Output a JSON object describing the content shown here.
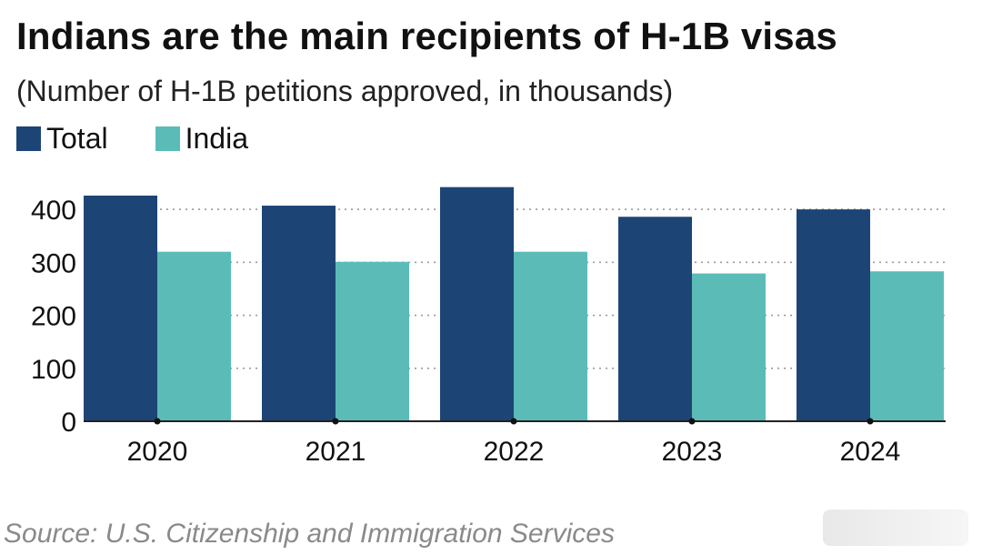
{
  "header": {
    "title": "Indians are the main recipients of H-1B visas",
    "subtitle": "(Number of H-1B petitions approved, in thousands)"
  },
  "legend": [
    {
      "label": "Total",
      "color": "#1c4576"
    },
    {
      "label": "India",
      "color": "#5bbcb7"
    }
  ],
  "footer": {
    "source": "Source: U.S. Citizenship and Immigration Services"
  },
  "chart_data": {
    "type": "bar",
    "title": "Indians are the main recipients of H-1B visas",
    "subtitle": "(Number of H-1B petitions approved, in thousands)",
    "categories": [
      "2020",
      "2021",
      "2022",
      "2023",
      "2024"
    ],
    "series": [
      {
        "name": "Total",
        "color": "#1c4576",
        "values": [
          426,
          407,
          442,
          386,
          400
        ]
      },
      {
        "name": "India",
        "color": "#5bbcb7",
        "values": [
          320,
          301,
          320,
          279,
          283
        ]
      }
    ],
    "ylim": [
      0,
      450
    ],
    "yticks": [
      0,
      100,
      200,
      300,
      400
    ],
    "grid": true,
    "legend_position": "top-left"
  }
}
